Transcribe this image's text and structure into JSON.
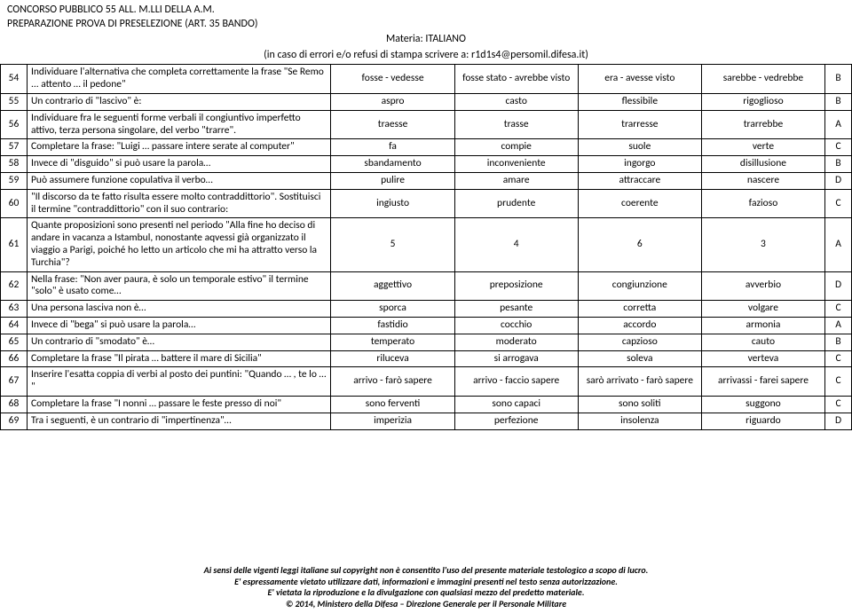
{
  "header": {
    "line1": "CONCORSO PUBBLICO 55 ALL. M.LLI DELLA A.M.",
    "line2": "PREPARAZIONE PROVA DI PRESELEZIONE (ART. 35 BANDO)",
    "subject": "Materia: ITALIANO",
    "note": "(in caso di errori e/o refusi di stampa scrivere a: r1d1s4@persomil.difesa.it)"
  },
  "rows": [
    {
      "n": "54",
      "q": "Individuare l'alternativa che completa correttamente la frase \"Se Remo ... attento … il pedone\"",
      "a": "fosse - vedesse",
      "b": "fosse stato - avrebbe visto",
      "c": "era - avesse visto",
      "d": "sarebbe - vedrebbe",
      "ans": "B"
    },
    {
      "n": "55",
      "q": "Un contrario di \"lascivo\" è:",
      "a": "aspro",
      "b": "casto",
      "c": "flessibile",
      "d": "rigoglioso",
      "ans": "B"
    },
    {
      "n": "56",
      "q": "Individuare fra le seguenti forme verbali il congiuntivo imperfetto attivo, terza persona singolare, del verbo \"trarre\".",
      "a": "traesse",
      "b": "trasse",
      "c": "trarresse",
      "d": "trarrebbe",
      "ans": "A"
    },
    {
      "n": "57",
      "q": "Completare la frase: \"Luigi … passare intere serate al computer\"",
      "a": "fa",
      "b": "compie",
      "c": "suole",
      "d": "verte",
      "ans": "C"
    },
    {
      "n": "58",
      "q": "Invece di \"disguido\" si può usare la parola…",
      "a": "sbandamento",
      "b": "inconveniente",
      "c": "ingorgo",
      "d": "disillusione",
      "ans": "B"
    },
    {
      "n": "59",
      "q": "Può assumere funzione copulativa il verbo…",
      "a": "pulire",
      "b": "amare",
      "c": "attraccare",
      "d": "nascere",
      "ans": "D"
    },
    {
      "n": "60",
      "q": "\"Il discorso da te fatto risulta essere molto contraddittorio\". Sostituisci il termine \"contraddittorio\" con il suo contrario:",
      "a": "ingiusto",
      "b": "prudente",
      "c": "coerente",
      "d": "fazioso",
      "ans": "C"
    },
    {
      "n": "61",
      "q": "Quante proposizioni sono presenti nel periodo \"Alla fine ho deciso di andare in vacanza a Istambul, nonostante aqvessi già organizzato il viaggio a Parigi, poiché ho letto un articolo che mi ha attratto verso la Turchia\"?",
      "a": "5",
      "b": "4",
      "c": "6",
      "d": "3",
      "ans": "A"
    },
    {
      "n": "62",
      "q": "Nella frase: \"Non aver paura, è solo un temporale estivo\" il termine \"solo\" è usato come…",
      "a": "aggettivo",
      "b": "preposizione",
      "c": "congiunzione",
      "d": "avverbio",
      "ans": "D"
    },
    {
      "n": "63",
      "q": "Una persona lasciva non è…",
      "a": "sporca",
      "b": "pesante",
      "c": "corretta",
      "d": "volgare",
      "ans": "C"
    },
    {
      "n": "64",
      "q": "Invece di \"bega\" si può usare la parola…",
      "a": "fastidio",
      "b": "cocchio",
      "c": "accordo",
      "d": "armonia",
      "ans": "A"
    },
    {
      "n": "65",
      "q": "Un contrario di \"smodato\" è…",
      "a": "temperato",
      "b": "moderato",
      "c": "capzioso",
      "d": "cauto",
      "ans": "B"
    },
    {
      "n": "66",
      "q": "Completare la frase \"Il pirata … battere il mare di Sicilia\"",
      "a": "riluceva",
      "b": "si arrogava",
      "c": "soleva",
      "d": "verteva",
      "ans": "C"
    },
    {
      "n": "67",
      "q": "Inserire l'esatta coppia di verbi al posto dei puntini: \"Quando … , te lo … \"",
      "a": "arrivo - farò sapere",
      "b": "arrivo - faccio sapere",
      "c": "sarò arrivato - farò sapere",
      "d": "arrivassi - farei sapere",
      "ans": "C"
    },
    {
      "n": "68",
      "q": "Completare la frase \"I nonni … passare le feste presso di noi\"",
      "a": "sono ferventi",
      "b": "sono capaci",
      "c": "sono soliti",
      "d": "suggono",
      "ans": "C"
    },
    {
      "n": "69",
      "q": "Tra i seguenti, è un contrario di \"impertinenza\"…",
      "a": "imperizia",
      "b": "perfezione",
      "c": "insolenza",
      "d": "riguardo",
      "ans": "D"
    }
  ],
  "footer": {
    "f1": "Ai sensi delle vigenti leggi italiane sul copyright non è consentito l'uso del presente materiale testologico a scopo di lucro.",
    "f2": "E' espressamente vietato utilizzare dati, informazioni e immagini presenti nel testo senza autorizzazione.",
    "f3": "E' vietata la riproduzione e la divulgazione con qualsiasi mezzo del predetto materiale.",
    "f4": "© 2014, Ministero della Difesa – Direzione Generale per il Personale Militare"
  }
}
